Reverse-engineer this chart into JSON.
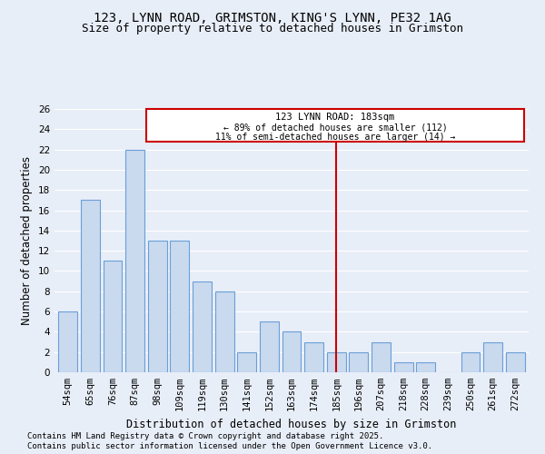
{
  "title_line1": "123, LYNN ROAD, GRIMSTON, KING'S LYNN, PE32 1AG",
  "title_line2": "Size of property relative to detached houses in Grimston",
  "xlabel": "Distribution of detached houses by size in Grimston",
  "ylabel": "Number of detached properties",
  "categories": [
    "54sqm",
    "65sqm",
    "76sqm",
    "87sqm",
    "98sqm",
    "109sqm",
    "119sqm",
    "130sqm",
    "141sqm",
    "152sqm",
    "163sqm",
    "174sqm",
    "185sqm",
    "196sqm",
    "207sqm",
    "218sqm",
    "228sqm",
    "239sqm",
    "250sqm",
    "261sqm",
    "272sqm"
  ],
  "values": [
    6,
    17,
    11,
    22,
    13,
    13,
    9,
    8,
    2,
    5,
    4,
    3,
    2,
    2,
    3,
    1,
    1,
    0,
    2,
    3,
    2
  ],
  "bar_color": "#c9d9ee",
  "bar_edge_color": "#6a9fd8",
  "vline_x": 12,
  "vline_color": "#cc0000",
  "box_text_line1": "123 LYNN ROAD: 183sqm",
  "box_text_line2": "← 89% of detached houses are smaller (112)",
  "box_text_line3": "11% of semi-detached houses are larger (14) →",
  "box_color": "#cc0000",
  "box_fill": "#ffffff",
  "ylim": [
    0,
    26
  ],
  "yticks": [
    0,
    2,
    4,
    6,
    8,
    10,
    12,
    14,
    16,
    18,
    20,
    22,
    24,
    26
  ],
  "footnote_line1": "Contains HM Land Registry data © Crown copyright and database right 2025.",
  "footnote_line2": "Contains public sector information licensed under the Open Government Licence v3.0.",
  "background_color": "#e8eef8",
  "plot_background": "#e8eef8",
  "grid_color": "#ffffff",
  "title_fontsize": 10,
  "subtitle_fontsize": 9,
  "axis_label_fontsize": 8.5,
  "tick_fontsize": 7.5,
  "footnote_fontsize": 6.5
}
